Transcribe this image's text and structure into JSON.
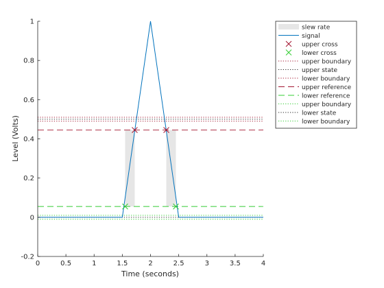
{
  "chart_data": {
    "type": "line",
    "title": "",
    "xlabel": "Time (seconds)",
    "ylabel": "Level (Volts)",
    "xlim": [
      0,
      4
    ],
    "ylim": [
      -0.2,
      1
    ],
    "xticks": [
      0,
      0.5,
      1,
      1.5,
      2,
      2.5,
      3,
      3.5,
      4
    ],
    "yticks": [
      -0.2,
      0,
      0.2,
      0.4,
      0.6,
      0.8,
      1
    ],
    "xtick_labels": [
      "0",
      "0.5",
      "1",
      "1.5",
      "2",
      "2.5",
      "3",
      "3.5",
      "4"
    ],
    "ytick_labels": [
      "-0.2",
      "0",
      "0.2",
      "0.4",
      "0.6",
      "0.8",
      "1"
    ],
    "grid": false,
    "legend_position": "outside-top-right",
    "series": [
      {
        "name": "signal",
        "color": "#0072bd",
        "x": [
          0,
          1.5,
          2.0,
          2.5,
          4.0
        ],
        "y": [
          0.0,
          0.0,
          1.0,
          0.0,
          0.0
        ]
      }
    ],
    "slew_rate_regions": {
      "name": "slew rate",
      "color": "#e6e6e6",
      "intervals": [
        {
          "x_start": 1.55,
          "x_end": 1.72,
          "y_low": 0.055,
          "y_high": 0.445
        },
        {
          "x_start": 2.28,
          "x_end": 2.45,
          "y_low": 0.055,
          "y_high": 0.445
        }
      ]
    },
    "upper_crossings": {
      "name": "upper cross",
      "color": "#a2142f",
      "x": [
        1.72,
        2.28
      ],
      "y": [
        0.445,
        0.445
      ]
    },
    "lower_crossings": {
      "name": "lower cross",
      "color": "#33cc33",
      "x": [
        1.55,
        2.45
      ],
      "y": [
        0.055,
        0.055
      ]
    },
    "horizontal_lines": [
      {
        "name": "upper boundary",
        "y": 0.51,
        "color": "#a2142f",
        "style": "dotted"
      },
      {
        "name": "upper state",
        "y": 0.5,
        "color": "#262626",
        "style": "dotted"
      },
      {
        "name": "lower boundary",
        "y": 0.49,
        "color": "#a2142f",
        "style": "dotted"
      },
      {
        "name": "upper reference",
        "y": 0.445,
        "color": "#a2142f",
        "style": "dashed"
      },
      {
        "name": "lower reference",
        "y": 0.055,
        "color": "#33cc33",
        "style": "dashed"
      },
      {
        "name": "upper boundary",
        "y": 0.01,
        "color": "#33cc33",
        "style": "dotted"
      },
      {
        "name": "lower state",
        "y": 0.0,
        "color": "#262626",
        "style": "dotted"
      },
      {
        "name": "lower boundary",
        "y": -0.01,
        "color": "#33cc33",
        "style": "dotted"
      }
    ],
    "legend": [
      {
        "label": "slew rate",
        "kind": "patch",
        "color": "#e6e6e6"
      },
      {
        "label": "signal",
        "kind": "line",
        "color": "#0072bd",
        "style": "solid"
      },
      {
        "label": "upper cross",
        "kind": "marker",
        "color": "#a2142f"
      },
      {
        "label": "lower cross",
        "kind": "marker",
        "color": "#33cc33"
      },
      {
        "label": "upper boundary",
        "kind": "line",
        "color": "#a2142f",
        "style": "dotted"
      },
      {
        "label": "upper state",
        "kind": "line",
        "color": "#262626",
        "style": "dotted"
      },
      {
        "label": "lower boundary",
        "kind": "line",
        "color": "#a2142f",
        "style": "dotted"
      },
      {
        "label": "upper reference",
        "kind": "line",
        "color": "#a2142f",
        "style": "dashed"
      },
      {
        "label": "lower reference",
        "kind": "line",
        "color": "#33cc33",
        "style": "dashed"
      },
      {
        "label": "upper boundary",
        "kind": "line",
        "color": "#33cc33",
        "style": "dotted"
      },
      {
        "label": "lower state",
        "kind": "line",
        "color": "#262626",
        "style": "dotted"
      },
      {
        "label": "lower boundary",
        "kind": "line",
        "color": "#33cc33",
        "style": "dotted"
      }
    ]
  }
}
